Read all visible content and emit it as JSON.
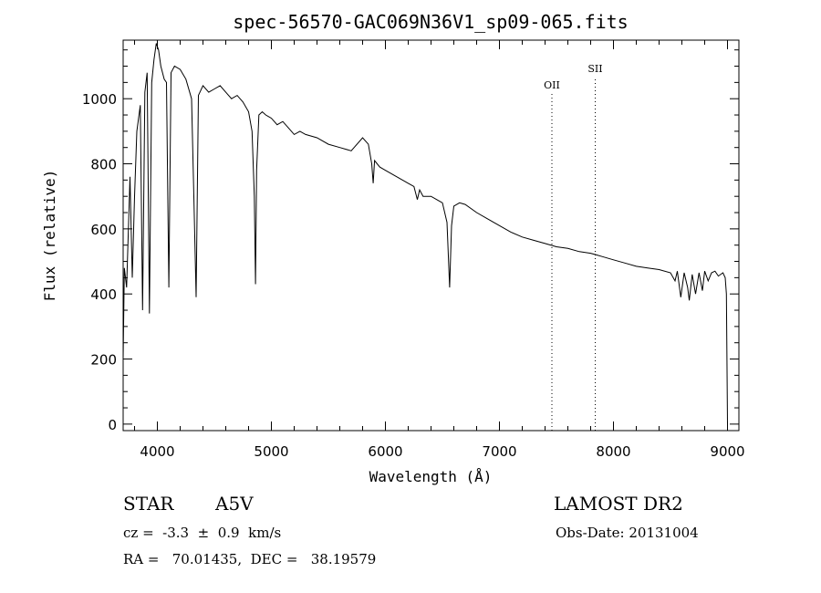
{
  "chart_data": {
    "type": "line",
    "title": "spec-56570-GAC069N36V1_sp09-065.fits",
    "xlabel": "Wavelength (Å)",
    "ylabel": "Flux (relative)",
    "xlim": [
      3700,
      9100
    ],
    "ylim": [
      -20,
      1180
    ],
    "xticks": [
      4000,
      5000,
      6000,
      7000,
      8000,
      9000
    ],
    "xtick_labels": [
      "4000",
      "5000",
      "6000",
      "7000",
      "8000",
      "9000"
    ],
    "yticks": [
      0,
      200,
      400,
      600,
      800,
      1000
    ],
    "ytick_labels": [
      "0",
      "200",
      "400",
      "600",
      "800",
      "1000"
    ],
    "grid": false,
    "series": [
      {
        "x": [
          3700,
          3710,
          3730,
          3760,
          3780,
          3800,
          3820,
          3850,
          3870,
          3890,
          3910,
          3930,
          3950,
          3970,
          3990,
          4010,
          4030,
          4060,
          4080,
          4101,
          4120,
          4150,
          4200,
          4250,
          4300,
          4320,
          4340,
          4360,
          4400,
          4450,
          4500,
          4550,
          4600,
          4650,
          4700,
          4750,
          4800,
          4830,
          4850,
          4861,
          4870,
          4890,
          4920,
          4950,
          5000,
          5050,
          5100,
          5150,
          5200,
          5250,
          5300,
          5400,
          5500,
          5600,
          5700,
          5800,
          5850,
          5880,
          5893,
          5905,
          5950,
          6000,
          6100,
          6200,
          6250,
          6280,
          6300,
          6330,
          6400,
          6450,
          6500,
          6540,
          6563,
          6580,
          6600,
          6650,
          6700,
          6800,
          6900,
          7000,
          7100,
          7200,
          7300,
          7400,
          7500,
          7600,
          7700,
          7800,
          7850,
          7900,
          8000,
          8100,
          8200,
          8300,
          8400,
          8500,
          8540,
          8560,
          8590,
          8620,
          8650,
          8665,
          8690,
          8720,
          8750,
          8780,
          8800,
          8830,
          8860,
          8890,
          8920,
          8960,
          8980,
          8990,
          9000
        ],
        "y": [
          200,
          480,
          420,
          760,
          450,
          700,
          900,
          980,
          350,
          1020,
          1080,
          340,
          1050,
          1120,
          1170,
          1150,
          1100,
          1060,
          1050,
          420,
          1080,
          1100,
          1090,
          1060,
          1000,
          700,
          390,
          1010,
          1040,
          1020,
          1030,
          1040,
          1020,
          1000,
          1010,
          990,
          960,
          900,
          700,
          430,
          780,
          950,
          960,
          950,
          940,
          920,
          930,
          910,
          890,
          900,
          890,
          880,
          860,
          850,
          840,
          880,
          860,
          800,
          740,
          810,
          790,
          780,
          760,
          740,
          730,
          690,
          720,
          700,
          700,
          690,
          680,
          620,
          420,
          610,
          670,
          680,
          675,
          650,
          630,
          610,
          590,
          575,
          565,
          555,
          545,
          540,
          530,
          525,
          520,
          515,
          505,
          495,
          485,
          480,
          475,
          465,
          440,
          470,
          390,
          465,
          420,
          380,
          460,
          400,
          465,
          410,
          470,
          440,
          465,
          470,
          455,
          465,
          450,
          400,
          0
        ]
      }
    ],
    "annotations": [
      {
        "label": "OII",
        "x": 7460
      },
      {
        "label": "SII",
        "x": 7840
      }
    ]
  },
  "info": {
    "object_type": "STAR",
    "subclass": "A5V",
    "survey": "LAMOST DR2",
    "redshift": "cz =  -3.3  ±  0.9  km/s",
    "obs_date": "Obs-Date: 20131004",
    "coords": "RA =   70.01435,  DEC =   38.19579"
  }
}
